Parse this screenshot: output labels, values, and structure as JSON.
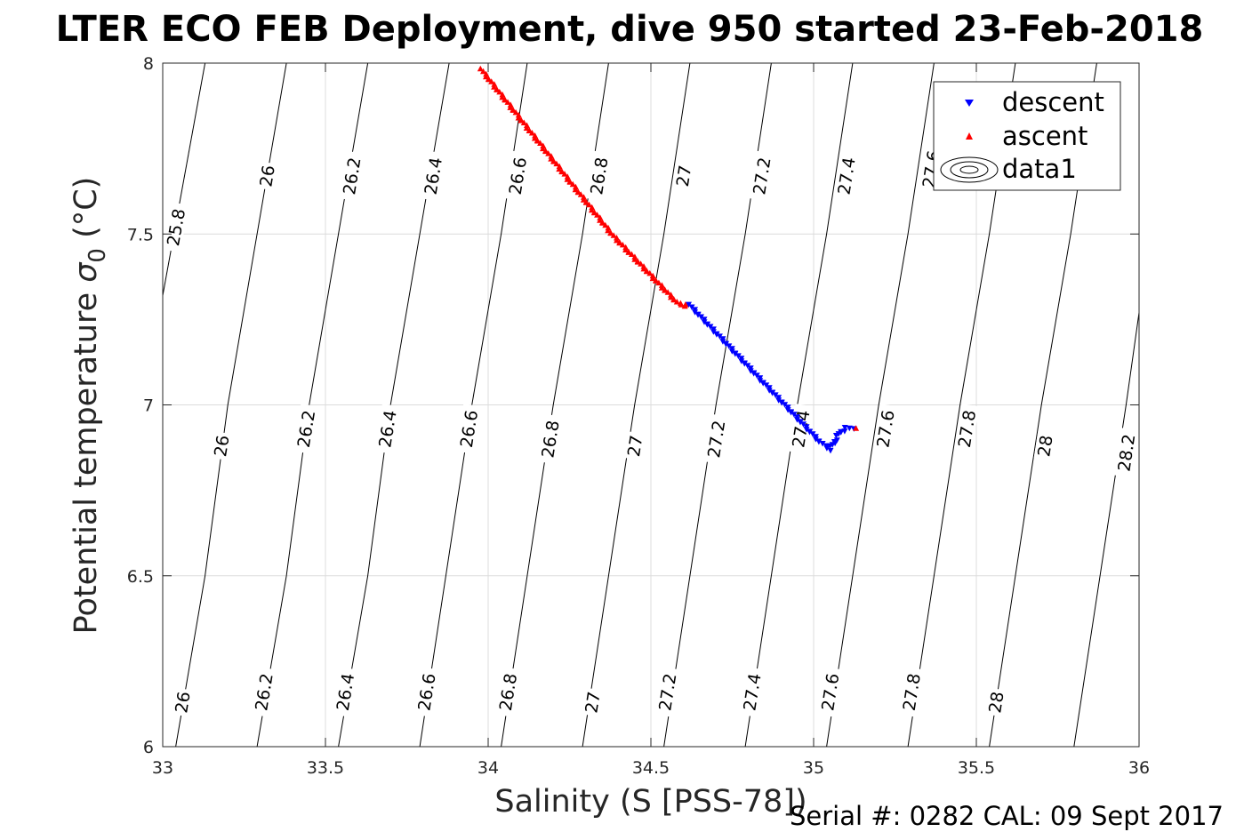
{
  "title": "LTER ECO FEB Deployment, dive 950 started 23-Feb-2018",
  "footer": "Serial #: 0282  CAL: 09 Sept 2017",
  "chart_data": {
    "type": "scatter",
    "xlabel": "Salinity (S [PSS-78])",
    "ylabel_main": "Potential temperature ",
    "ylabel_symbol": "σ",
    "ylabel_sub": "0",
    "ylabel_unit": " (°C)",
    "xlim": [
      33,
      36
    ],
    "ylim": [
      6,
      8
    ],
    "grid": true,
    "x_ticks": [
      {
        "value": 33,
        "label": "33"
      },
      {
        "value": 33.5,
        "label": "33.5"
      },
      {
        "value": 34,
        "label": "34"
      },
      {
        "value": 34.5,
        "label": "34.5"
      },
      {
        "value": 35,
        "label": "35"
      },
      {
        "value": 35.5,
        "label": "35.5"
      },
      {
        "value": 36,
        "label": "36"
      }
    ],
    "y_ticks": [
      {
        "value": 6,
        "label": "6"
      },
      {
        "value": 6.5,
        "label": "6.5"
      },
      {
        "value": 7,
        "label": "7"
      },
      {
        "value": 7.5,
        "label": "7.5"
      },
      {
        "value": 8,
        "label": "8"
      }
    ],
    "legend": {
      "placement": "top-right",
      "entries": [
        {
          "label": "descent",
          "marker": "triangle-down",
          "color": "#0000ff"
        },
        {
          "label": "ascent",
          "marker": "triangle-up",
          "color": "#ff0000"
        },
        {
          "label": "data1",
          "marker": "contour",
          "color": "#000000"
        }
      ]
    },
    "series": [
      {
        "name": "descent",
        "marker": "triangle-down",
        "color": "#0000ff",
        "x": [
          34.62,
          34.66,
          34.7,
          34.74,
          34.78,
          34.82,
          34.86,
          34.9,
          34.94,
          34.98,
          35.02,
          35.05,
          35.07,
          35.08,
          35.1,
          35.12
        ],
        "y": [
          7.29,
          7.25,
          7.21,
          7.17,
          7.13,
          7.09,
          7.05,
          7.01,
          6.97,
          6.93,
          6.89,
          6.87,
          6.9,
          6.92,
          6.93,
          6.93
        ]
      },
      {
        "name": "ascent",
        "marker": "triangle-up",
        "color": "#ff0000",
        "x": [
          33.98,
          34.03,
          34.08,
          34.13,
          34.18,
          34.23,
          34.28,
          34.33,
          34.38,
          34.43,
          34.48,
          34.53,
          34.58,
          34.61,
          35.13
        ],
        "y": [
          7.98,
          7.92,
          7.86,
          7.8,
          7.74,
          7.68,
          7.62,
          7.56,
          7.5,
          7.45,
          7.4,
          7.35,
          7.3,
          7.29,
          6.93
        ]
      }
    ],
    "contours": [
      {
        "label": "25.8",
        "points": [
          [
            33.0,
            7.32
          ],
          [
            33.13,
            8.0
          ]
        ],
        "labels_at": [
          [
            33.04,
            7.52
          ]
        ]
      },
      {
        "label": "26",
        "points": [
          [
            33.04,
            6.0
          ],
          [
            33.13,
            6.5
          ],
          [
            33.2,
            7.0
          ],
          [
            33.29,
            7.5
          ],
          [
            33.38,
            8.0
          ]
        ],
        "labels_at": [
          [
            33.06,
            6.13
          ],
          [
            33.18,
            6.88
          ],
          [
            33.32,
            7.67
          ]
        ]
      },
      {
        "label": "26.2",
        "points": [
          [
            33.29,
            6.0
          ],
          [
            33.38,
            6.5
          ],
          [
            33.45,
            7.0
          ],
          [
            33.54,
            7.5
          ],
          [
            33.63,
            8.0
          ]
        ],
        "labels_at": [
          [
            33.31,
            6.16
          ],
          [
            33.44,
            6.93
          ],
          [
            33.58,
            7.67
          ]
        ]
      },
      {
        "label": "26.4",
        "points": [
          [
            33.54,
            6.0
          ],
          [
            33.63,
            6.5
          ],
          [
            33.7,
            7.0
          ],
          [
            33.79,
            7.5
          ],
          [
            33.88,
            8.0
          ]
        ],
        "labels_at": [
          [
            33.56,
            6.16
          ],
          [
            33.69,
            6.93
          ],
          [
            33.83,
            7.67
          ]
        ]
      },
      {
        "label": "26.6",
        "points": [
          [
            33.79,
            6.0
          ],
          [
            33.87,
            6.5
          ],
          [
            33.95,
            7.0
          ],
          [
            34.04,
            7.5
          ],
          [
            34.12,
            8.0
          ]
        ],
        "labels_at": [
          [
            33.81,
            6.16
          ],
          [
            33.94,
            6.93
          ],
          [
            34.09,
            7.67
          ]
        ]
      },
      {
        "label": "26.8",
        "points": [
          [
            34.04,
            6.0
          ],
          [
            34.12,
            6.5
          ],
          [
            34.2,
            7.0
          ],
          [
            34.29,
            7.5
          ],
          [
            34.37,
            8.0
          ]
        ],
        "labels_at": [
          [
            34.06,
            6.16
          ],
          [
            34.19,
            6.9
          ],
          [
            34.34,
            7.67
          ]
        ]
      },
      {
        "label": "27",
        "points": [
          [
            34.29,
            6.0
          ],
          [
            34.37,
            6.5
          ],
          [
            34.45,
            7.0
          ],
          [
            34.54,
            7.5
          ],
          [
            34.62,
            8.0
          ]
        ],
        "labels_at": [
          [
            34.32,
            6.13
          ],
          [
            34.45,
            6.88
          ],
          [
            34.6,
            7.67
          ]
        ]
      },
      {
        "label": "27.2",
        "points": [
          [
            34.54,
            6.0
          ],
          [
            34.62,
            6.5
          ],
          [
            34.7,
            7.0
          ],
          [
            34.79,
            7.5
          ],
          [
            34.87,
            8.0
          ]
        ],
        "labels_at": [
          [
            34.55,
            6.16
          ],
          [
            34.7,
            6.9
          ],
          [
            34.84,
            7.67
          ]
        ]
      },
      {
        "label": "27.4",
        "points": [
          [
            34.79,
            6.0
          ],
          [
            34.87,
            6.5
          ],
          [
            34.95,
            7.0
          ],
          [
            35.04,
            7.5
          ],
          [
            35.12,
            8.0
          ]
        ],
        "labels_at": [
          [
            34.81,
            6.16
          ],
          [
            34.96,
            6.93
          ],
          [
            35.1,
            7.67
          ]
        ]
      },
      {
        "label": "27.6",
        "points": [
          [
            35.04,
            6.0
          ],
          [
            35.12,
            6.5
          ],
          [
            35.2,
            7.0
          ],
          [
            35.29,
            7.5
          ],
          [
            35.37,
            8.0
          ]
        ],
        "labels_at": [
          [
            35.05,
            6.16
          ],
          [
            35.22,
            6.93
          ],
          [
            35.36,
            7.69
          ]
        ]
      },
      {
        "label": "27.8",
        "points": [
          [
            35.29,
            6.0
          ],
          [
            35.37,
            6.5
          ],
          [
            35.45,
            7.0
          ],
          [
            35.54,
            7.5
          ],
          [
            35.62,
            8.0
          ]
        ],
        "labels_at": [
          [
            35.3,
            6.16
          ],
          [
            35.47,
            6.93
          ]
        ]
      },
      {
        "label": "28",
        "points": [
          [
            35.54,
            6.0
          ],
          [
            35.62,
            6.5
          ],
          [
            35.7,
            7.0
          ],
          [
            35.79,
            7.5
          ],
          [
            35.87,
            8.0
          ]
        ],
        "labels_at": [
          [
            35.56,
            6.13
          ],
          [
            35.71,
            6.88
          ]
        ]
      },
      {
        "label": "28.2",
        "points": [
          [
            35.8,
            6.0
          ],
          [
            35.88,
            6.5
          ],
          [
            35.96,
            7.0
          ],
          [
            36.0,
            7.27
          ]
        ],
        "labels_at": [
          [
            35.96,
            6.86
          ]
        ]
      }
    ]
  }
}
